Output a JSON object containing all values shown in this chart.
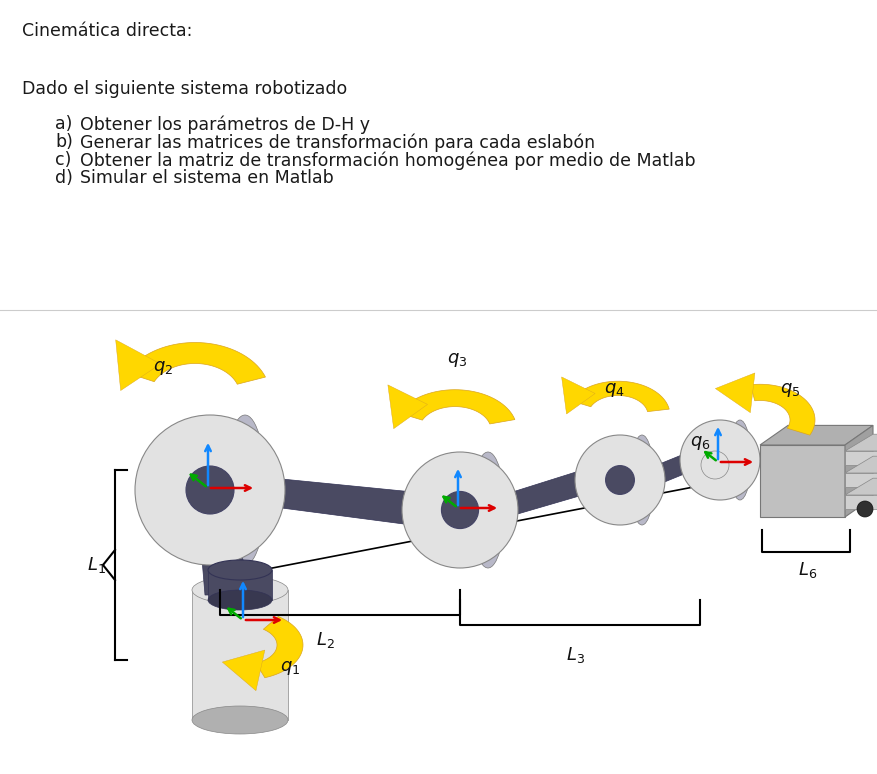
{
  "title_line": "Cinemática directa:",
  "intro_line": "Dado el siguiente sistema robotizado",
  "items": [
    "Obtener los parámetros de D-H y",
    "Generar las matrices de transformación para cada eslabón",
    "Obtener la matriz de transformación homogénea por medio de Matlab",
    "Simular el sistema en Matlab"
  ],
  "item_labels": [
    "a)",
    "b)",
    "c)",
    "d)"
  ],
  "background_color": "#ffffff",
  "text_color": "#1a1a1a",
  "title_fontsize": 12.5,
  "body_fontsize": 12.5,
  "col_light": "#e2e2e2",
  "col_dark": "#4a4a62",
  "col_arm": "#4a4a62",
  "col_darker": "#383850",
  "col_side": "#b8b8c8",
  "yellow": "#FFD700",
  "yellow_edge": "#DAA520",
  "red_arrow": "#dd0000",
  "blue_arrow": "#1188ff",
  "green_arrow": "#00aa00"
}
